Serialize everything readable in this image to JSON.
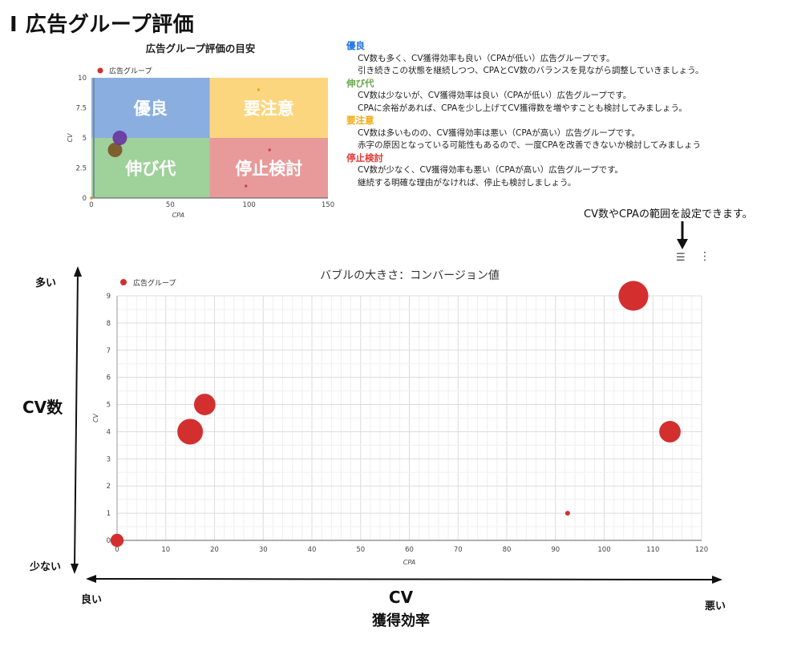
{
  "page_title": "I 広告グループ評価",
  "colors": {
    "accent_red": "#d32f2f",
    "quad_good": "#8aaee0",
    "quad_caution": "#fcd67f",
    "quad_growth": "#9fd19a",
    "quad_stop": "#e89a9a",
    "head_good": "#1a73e8",
    "head_growth": "#6aa84f",
    "head_caution": "#f6a609",
    "head_stop": "#e53935"
  },
  "mini_chart": {
    "title": "広告グループ評価の目安",
    "legend": "広告グループ",
    "quadrants": {
      "top_left": "優良",
      "top_right": "要注意",
      "bottom_left": "伸び代",
      "bottom_right": "停止検討"
    }
  },
  "categories": [
    {
      "name": "優良",
      "color_key": "head_good",
      "lines": [
        "CV数も多く、CV獲得効率も良い（CPAが低い）広告グループです。",
        "引き続きこの状態を継続しつつ、CPAとCV数のバランスを見ながら調整していきましょう。"
      ]
    },
    {
      "name": "伸び代",
      "color_key": "head_growth",
      "lines": [
        "CV数は少ないが、CV獲得効率は良い（CPAが低い）広告グループです。",
        "CPAに余裕があれば、CPAを少し上げてCV獲得数を増やすことも検討してみましょう。"
      ]
    },
    {
      "name": "要注意",
      "color_key": "head_caution",
      "lines": [
        "CV数は多いものの、CV獲得効率は悪い（CPAが高い）広告グループです。",
        "赤字の原因となっている可能性もあるので、一度CPAを改善できないか検討してみましょう"
      ]
    },
    {
      "name": "停止検討",
      "color_key": "head_stop",
      "lines": [
        "CV数が少なく、CV獲得効率も悪い（CPAが高い）広告グループです。",
        "継続する明確な理由がなければ、停止も検討しましょう。"
      ]
    }
  ],
  "settings_note": "CV数やCPAの範囲を設定できます。",
  "axis_labels": {
    "many": "多い",
    "cv_count": "CV数",
    "few": "少ない",
    "good": "良い",
    "bad": "悪い",
    "efficiency_line1": "CV",
    "efficiency_line2": "獲得効率"
  },
  "chart_data": [
    {
      "type": "scatter",
      "title": "広告グループ評価の目安",
      "xlabel": "CPA",
      "ylabel": "CV",
      "xlim": [
        0,
        150
      ],
      "ylim": [
        0,
        10
      ],
      "xticks": [
        0,
        50,
        100,
        150
      ],
      "yticks": [
        0,
        2.5,
        5,
        7.5,
        10
      ],
      "legend": "top-left",
      "series": [
        {
          "name": "広告グループ",
          "points": [
            {
              "x": 0,
              "y": 0,
              "size": 1
            },
            {
              "x": 15,
              "y": 4,
              "size": 5
            },
            {
              "x": 18,
              "y": 5,
              "size": 5
            },
            {
              "x": 106,
              "y": 9,
              "size": 1
            },
            {
              "x": 113,
              "y": 4,
              "size": 1
            },
            {
              "x": 98,
              "y": 1,
              "size": 1
            }
          ]
        }
      ]
    },
    {
      "type": "scatter",
      "title": "バブルの大きさ：コンバージョン値",
      "xlabel": "CPA",
      "ylabel": "CV",
      "xlim": [
        0,
        120
      ],
      "ylim": [
        0,
        9
      ],
      "xticks": [
        0,
        10,
        20,
        30,
        40,
        50,
        60,
        70,
        80,
        90,
        100,
        110,
        120
      ],
      "yticks": [
        0,
        1,
        2,
        3,
        4,
        5,
        6,
        7,
        8,
        9
      ],
      "grid": true,
      "legend": "top-left",
      "series": [
        {
          "name": "広告グループ",
          "points": [
            {
              "x": 0,
              "y": 0,
              "size": 2
            },
            {
              "x": 15,
              "y": 4,
              "size": 5
            },
            {
              "x": 18,
              "y": 5,
              "size": 4
            },
            {
              "x": 92.5,
              "y": 1,
              "size": 1
            },
            {
              "x": 106,
              "y": 9,
              "size": 6
            },
            {
              "x": 113.5,
              "y": 4,
              "size": 4
            }
          ]
        }
      ]
    }
  ]
}
